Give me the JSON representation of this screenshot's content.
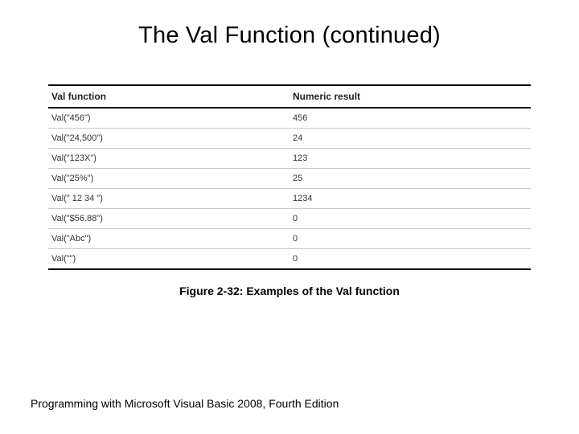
{
  "title": "The Val Function (continued)",
  "table": {
    "columns": [
      "Val function",
      "Numeric result"
    ],
    "rows": [
      {
        "func": "Val(\"456\")",
        "result": "456"
      },
      {
        "func": "Val(\"24,500\")",
        "result": "24"
      },
      {
        "func": "Val(\"123X\")",
        "result": "123"
      },
      {
        "func": "Val(\"25%\")",
        "result": "25"
      },
      {
        "func": "Val(\" 12 34 \")",
        "result": "1234"
      },
      {
        "func": "Val(\"$56.88\")",
        "result": "0"
      },
      {
        "func": "Val(\"Abc\")",
        "result": "0"
      },
      {
        "func": "Val(\"\")",
        "result": "0"
      }
    ],
    "header_border_color": "#000000",
    "row_border_color": "#c9c9c9",
    "header_fontsize": 12,
    "cell_fontsize": 11,
    "text_color": "#333333",
    "background_color": "#ffffff"
  },
  "caption": "Figure 2-32: Examples of the Val function",
  "footer": "Programming with Microsoft Visual Basic 2008, Fourth Edition"
}
